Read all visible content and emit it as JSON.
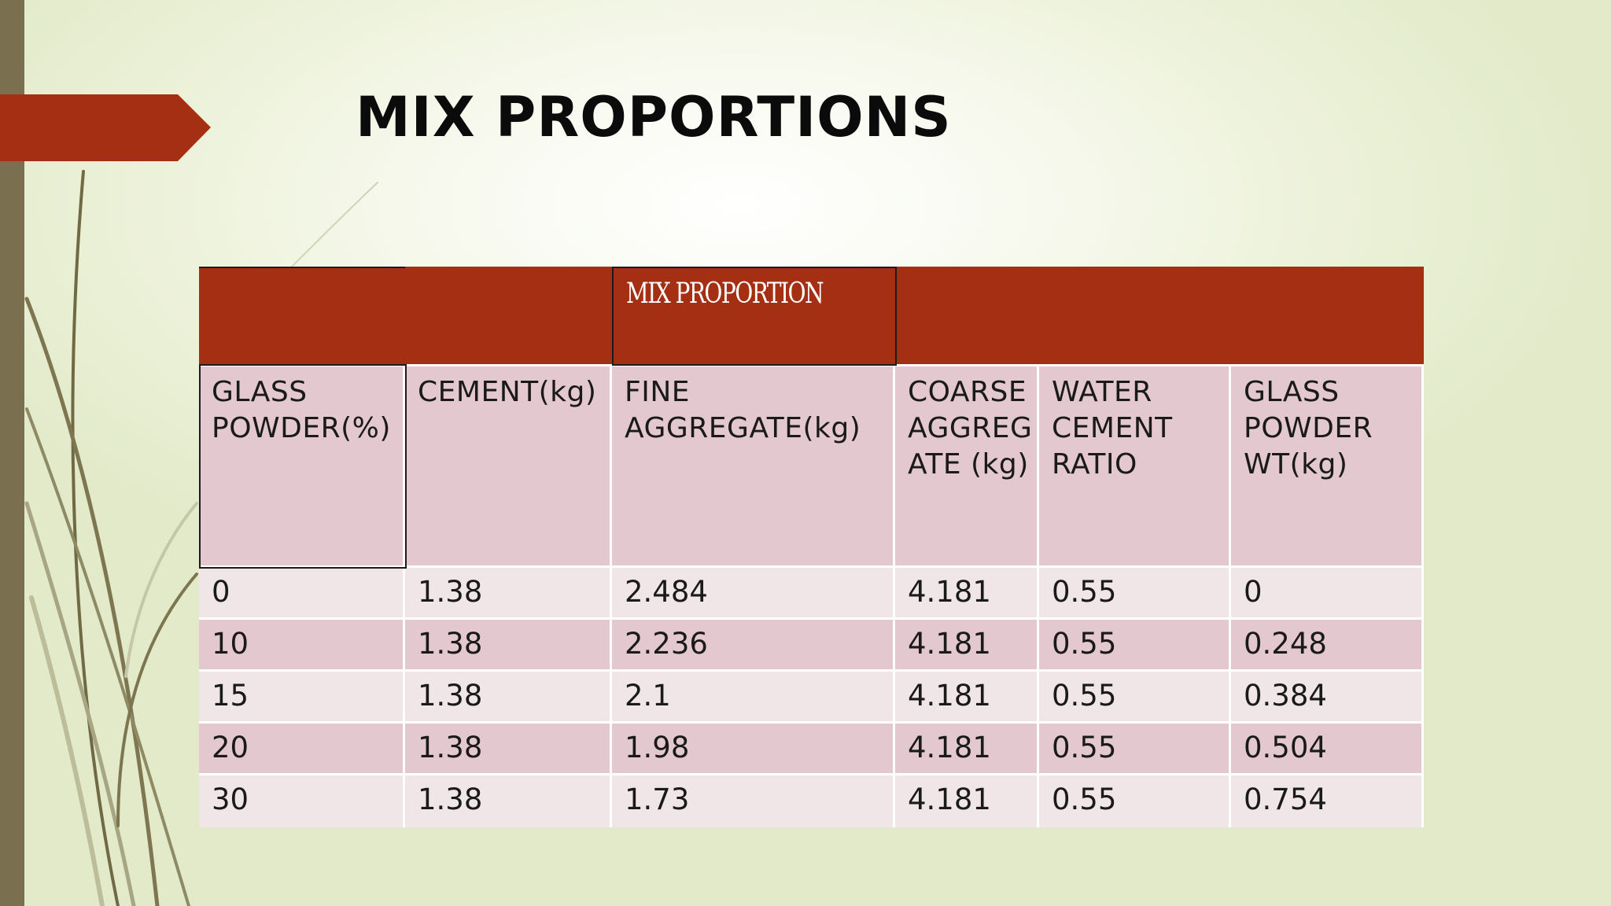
{
  "slide": {
    "title": "MIX PROPORTIONS",
    "colors": {
      "accent": "#a52f13",
      "header_fill": "#e3c9cf",
      "row_light": "#f0e6e8",
      "row_dark": "#e3c9cf",
      "side_bar": "#7a7050"
    }
  },
  "table": {
    "group_header": "MIX PROPORTION",
    "columns": [
      "GLASS POWDER(%)",
      "CEMENT(kg)",
      "FINE AGGREGATE(kg)",
      "COARSE AGGREGATE (kg)",
      "WATER CEMENT RATIO",
      "GLASS POWDER WT(kg)"
    ],
    "rows": [
      [
        "0",
        "1.38",
        "2.484",
        "4.181",
        "0.55",
        "0"
      ],
      [
        "10",
        "1.38",
        "2.236",
        "4.181",
        "0.55",
        "0.248"
      ],
      [
        "15",
        "1.38",
        "2.1",
        "4.181",
        "0.55",
        "0.384"
      ],
      [
        "20",
        "1.38",
        "1.98",
        "4.181",
        "0.55",
        "0.504"
      ],
      [
        "30",
        "1.38",
        "1.73",
        "4.181",
        "0.55",
        "0.754"
      ]
    ]
  }
}
